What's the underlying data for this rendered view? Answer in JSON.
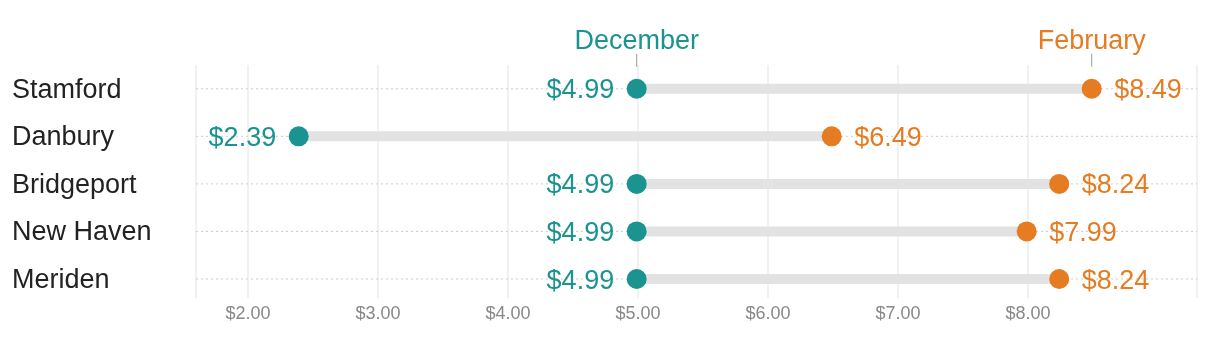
{
  "chart_data": {
    "type": "scatter",
    "orientation": "horizontal",
    "categories": [
      "Stamford",
      "Danbury",
      "Bridgeport",
      "New Haven",
      "Meriden"
    ],
    "series": [
      {
        "name": "December",
        "color": "#1a9391",
        "values": [
          4.99,
          2.39,
          4.99,
          4.99,
          4.99
        ],
        "value_labels": [
          "$4.99",
          "$2.39",
          "$4.99",
          "$4.99",
          "$4.99"
        ]
      },
      {
        "name": "February",
        "color": "#e57c22",
        "values": [
          8.49,
          6.49,
          8.24,
          7.99,
          8.24
        ],
        "value_labels": [
          "$8.49",
          "$6.49",
          "$8.24",
          "$7.99",
          "$8.24"
        ]
      }
    ],
    "xlim": [
      1.6,
      9.3
    ],
    "xticks": [
      {
        "value": 2,
        "label": "$2.00"
      },
      {
        "value": 3,
        "label": "$3.00"
      },
      {
        "value": 4,
        "label": "$4.00"
      },
      {
        "value": 5,
        "label": "$5.00"
      },
      {
        "value": 6,
        "label": "$6.00"
      },
      {
        "value": 7,
        "label": "$7.00"
      },
      {
        "value": 8,
        "label": "$8.00"
      }
    ],
    "grid": true,
    "legend": false,
    "marker": "circle"
  }
}
